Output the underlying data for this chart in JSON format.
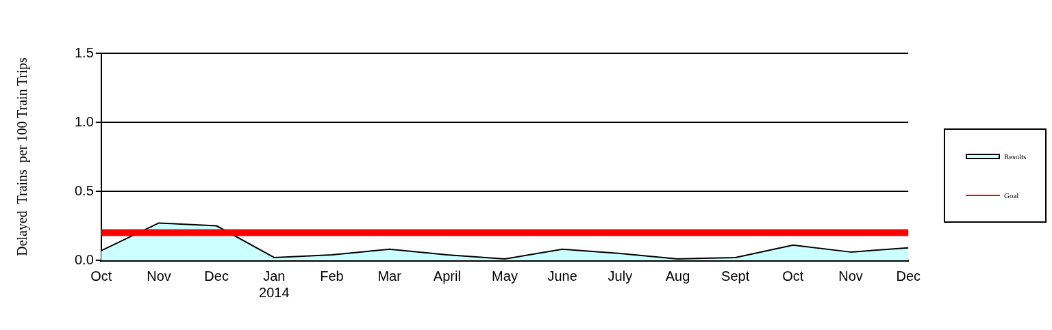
{
  "chart_data": {
    "type": "area",
    "ylabel": "Delayed  Trains  per 100 Train Trips",
    "categories": [
      "Oct",
      "Nov",
      "Dec",
      "Jan\n2014",
      "Feb",
      "Mar",
      "April",
      "May",
      "June",
      "July",
      "Aug",
      "Sept",
      "Oct",
      "Nov",
      "Dec"
    ],
    "series": [
      {
        "name": "Results",
        "type": "area",
        "color": "#ccffff",
        "values": [
          0.07,
          0.27,
          0.25,
          0.02,
          0.04,
          0.08,
          0.04,
          0.01,
          0.08,
          0.05,
          0.01,
          0.02,
          0.11,
          0.06,
          0.09
        ]
      },
      {
        "name": "Goal",
        "type": "line",
        "color": "#ff0000",
        "values": [
          0.2,
          0.2,
          0.2,
          0.2,
          0.2,
          0.2,
          0.2,
          0.2,
          0.2,
          0.2,
          0.2,
          0.2,
          0.2,
          0.2,
          0.2
        ]
      }
    ],
    "ylim": [
      0,
      1.5
    ],
    "yticks": [
      {
        "value": 0,
        "label": "0.0"
      },
      {
        "value": 0.5,
        "label": "0.5"
      },
      {
        "value": 1,
        "label": "1.0"
      },
      {
        "value": 1.5,
        "label": "1.5"
      }
    ],
    "grid": "y",
    "legend": "right",
    "marker": "none"
  }
}
